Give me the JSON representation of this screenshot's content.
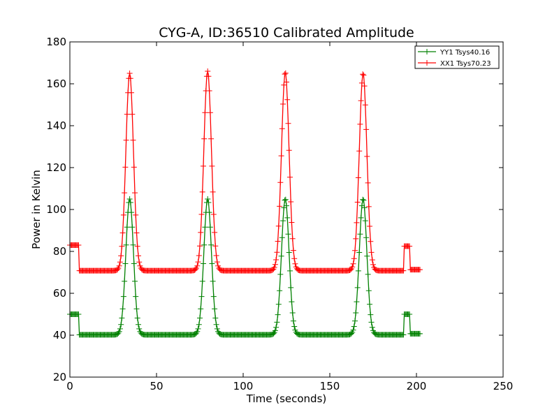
{
  "chart_data": {
    "type": "line",
    "title": "CYG-A, ID:36510 Calibrated Amplitude",
    "xlabel": "Time (seconds)",
    "ylabel": "Power in Kelvin",
    "xlim": [
      0,
      250
    ],
    "ylim": [
      20,
      180
    ],
    "xticks": [
      "0",
      "50",
      "100",
      "150",
      "200",
      "250"
    ],
    "yticks": [
      "20",
      "40",
      "60",
      "80",
      "100",
      "120",
      "140",
      "160",
      "180"
    ],
    "grid": false,
    "legend_position": "top-right",
    "marker": "+",
    "series": [
      {
        "name": "YY1 Tsys40.16",
        "color": "#008000",
        "baseline": 40.2,
        "high_segments": [
          {
            "x_start": 0,
            "x_end": 5,
            "value": 50
          },
          {
            "x_start": 193,
            "x_end": 196,
            "value": 50
          }
        ],
        "peaks": [
          {
            "x": 34.5,
            "value": 105
          },
          {
            "x": 79.5,
            "value": 105
          },
          {
            "x": 124.3,
            "value": 105
          },
          {
            "x": 169.2,
            "value": 105
          }
        ]
      },
      {
        "name": "XX1 Tsys70.23",
        "color": "#ff0000",
        "baseline": 70.8,
        "high_segments": [
          {
            "x_start": 0,
            "x_end": 5,
            "value": 83
          },
          {
            "x_start": 193,
            "x_end": 196,
            "value": 82.5
          }
        ],
        "peaks": [
          {
            "x": 34.5,
            "value": 165
          },
          {
            "x": 79.5,
            "value": 166
          },
          {
            "x": 124.3,
            "value": 165.5
          },
          {
            "x": 169.2,
            "value": 165
          }
        ]
      }
    ]
  }
}
